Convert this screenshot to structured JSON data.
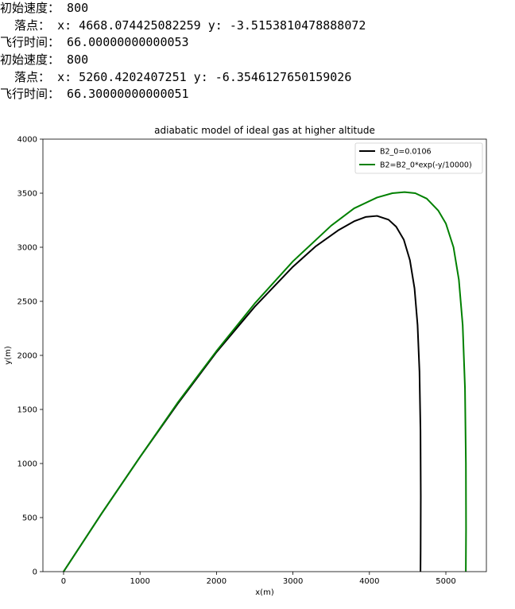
{
  "output_log": [
    {
      "label": "初始速度：",
      "value": "800"
    },
    {
      "label": "  落点：",
      "value": "x: 4668.074425082259 y: -3.5153810478888072"
    },
    {
      "label": "飞行时间：",
      "value": "66.00000000000053"
    },
    {
      "label": "初始速度：",
      "value": "800"
    },
    {
      "label": "  落点：",
      "value": "x: 5260.4202407251 y: -6.3546127650159026"
    },
    {
      "label": "飞行时间：",
      "value": "66.30000000000051"
    }
  ],
  "chart_data": {
    "type": "line",
    "title": "adiabatic model of ideal gas at higher altitude",
    "xlabel": "x(m)",
    "ylabel": "y(m)",
    "xlim": [
      -270,
      5530
    ],
    "ylim": [
      0,
      4000
    ],
    "xticks": [
      0,
      1000,
      2000,
      3000,
      4000,
      5000
    ],
    "yticks": [
      0,
      500,
      1000,
      1500,
      2000,
      2500,
      3000,
      3500,
      4000
    ],
    "legend_position": "top-right",
    "grid": false,
    "series": [
      {
        "name": "B2_0=0.0106",
        "color": "#000000",
        "points": [
          [
            0,
            0
          ],
          [
            500,
            540
          ],
          [
            1000,
            1060
          ],
          [
            1500,
            1560
          ],
          [
            2000,
            2030
          ],
          [
            2500,
            2450
          ],
          [
            3000,
            2820
          ],
          [
            3300,
            3010
          ],
          [
            3600,
            3160
          ],
          [
            3800,
            3240
          ],
          [
            3950,
            3280
          ],
          [
            4100,
            3290
          ],
          [
            4250,
            3255
          ],
          [
            4350,
            3190
          ],
          [
            4450,
            3070
          ],
          [
            4530,
            2880
          ],
          [
            4590,
            2620
          ],
          [
            4630,
            2280
          ],
          [
            4655,
            1850
          ],
          [
            4668,
            1300
          ],
          [
            4672,
            700
          ],
          [
            4670,
            200
          ],
          [
            4668,
            0
          ]
        ]
      },
      {
        "name": "B2=B2_0*exp(-y/10000)",
        "color": "#008000",
        "points": [
          [
            0,
            0
          ],
          [
            500,
            540
          ],
          [
            1000,
            1060
          ],
          [
            1500,
            1570
          ],
          [
            2000,
            2040
          ],
          [
            2500,
            2480
          ],
          [
            3000,
            2870
          ],
          [
            3500,
            3200
          ],
          [
            3800,
            3360
          ],
          [
            4100,
            3460
          ],
          [
            4300,
            3500
          ],
          [
            4460,
            3510
          ],
          [
            4600,
            3500
          ],
          [
            4750,
            3450
          ],
          [
            4900,
            3340
          ],
          [
            5000,
            3220
          ],
          [
            5100,
            3000
          ],
          [
            5170,
            2700
          ],
          [
            5220,
            2280
          ],
          [
            5250,
            1700
          ],
          [
            5262,
            1000
          ],
          [
            5264,
            400
          ],
          [
            5261,
            0
          ]
        ]
      }
    ]
  }
}
